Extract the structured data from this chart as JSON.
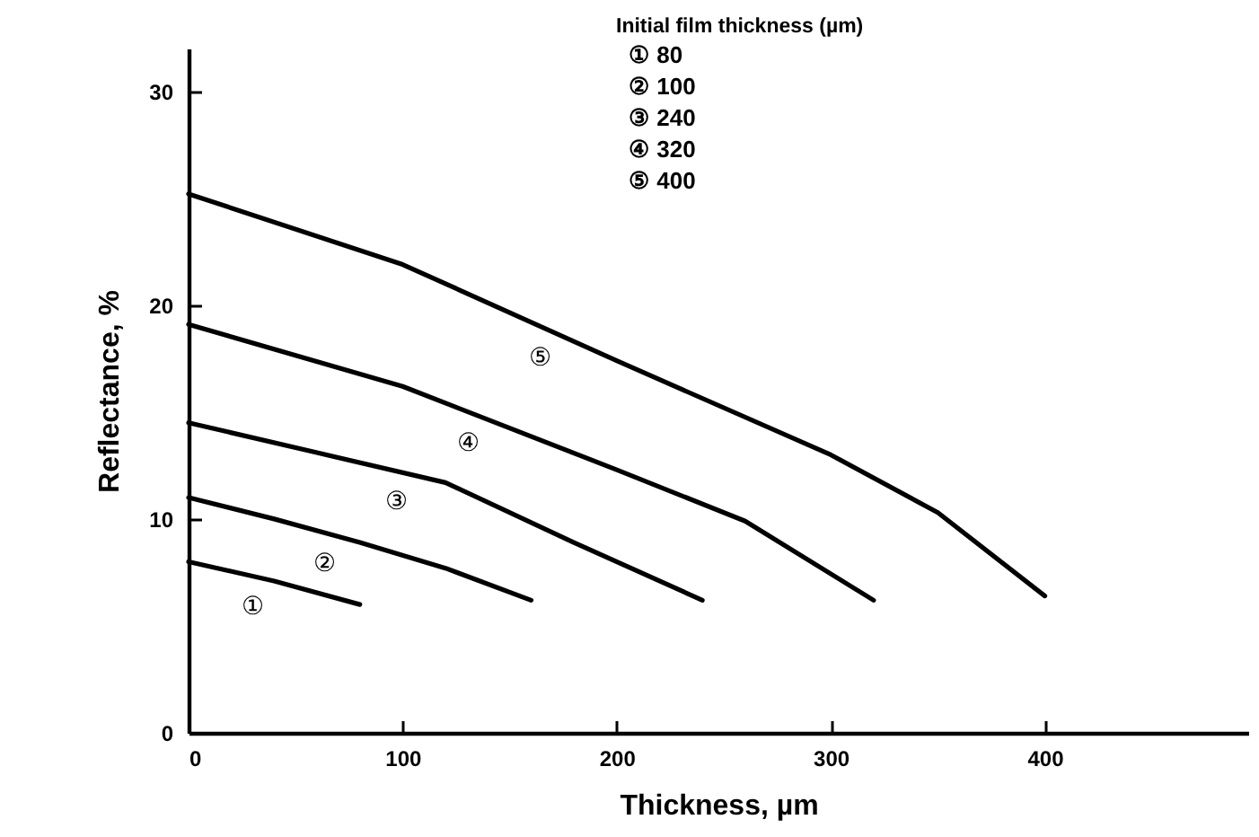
{
  "chart_data": {
    "type": "line",
    "xlabel": "Thickness, µm",
    "ylabel": "Reflectance, %",
    "legend_title": "Initial film thickness (µm)",
    "series": [
      {
        "name": "①",
        "color": "#000000",
        "x": [
          0,
          40,
          80
        ],
        "values": [
          8.0,
          7.1,
          6.0
        ]
      },
      {
        "name": "②",
        "color": "#000000",
        "x": [
          0,
          40,
          80,
          120,
          160
        ],
        "values": [
          11.0,
          10.0,
          8.9,
          7.7,
          6.2
        ]
      },
      {
        "name": "③",
        "color": "#000000",
        "x": [
          0,
          60,
          120,
          180,
          240
        ],
        "values": [
          14.5,
          13.1,
          11.7,
          8.9,
          6.2
        ]
      },
      {
        "name": "④",
        "color": "#000000",
        "x": [
          0,
          100,
          200,
          260,
          320
        ],
        "values": [
          19.1,
          16.2,
          12.3,
          9.9,
          6.2
        ]
      },
      {
        "name": "⑤",
        "color": "#000000",
        "x": [
          0,
          100,
          200,
          300,
          350,
          400
        ],
        "values": [
          25.2,
          21.9,
          17.4,
          13.0,
          10.3,
          6.4
        ]
      }
    ],
    "annotations": [
      "①  80",
      "②  100",
      "③  240",
      "④  320",
      "⑤  400"
    ],
    "xlim": [
      0,
      495
    ],
    "xticks": [
      0,
      100,
      200,
      300,
      400
    ],
    "ylim": [
      0,
      32
    ],
    "yticks": [
      0,
      10,
      20,
      30
    ],
    "grid": false,
    "legend": false,
    "marker": "none",
    "line_style": "solid"
  }
}
